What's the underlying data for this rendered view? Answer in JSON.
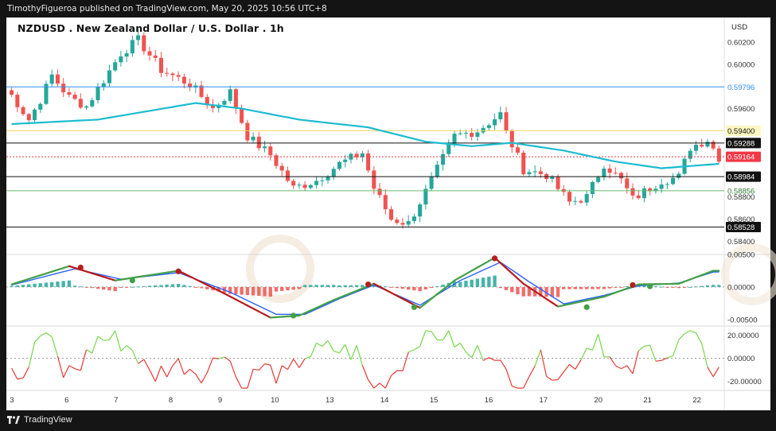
{
  "header": {
    "publisher_line": "TimothyFigueroa published on TradingView.com, May 20, 2025 10:56 UTC+8"
  },
  "title": "NZDUSD . New Zealand Dollar / U.S. Dollar . 1h",
  "currency": "USD",
  "footer": {
    "logo_text": "TradingView"
  },
  "colors": {
    "up": "#26a69a",
    "down": "#ef5350",
    "ma": "#1cbcd0",
    "hline": "#111111",
    "blue_line": "#2f8ff0",
    "yellow_line": "#f2d45c",
    "green_line": "#66bb6a",
    "current_price": "#f23645"
  },
  "chart_data": [
    {
      "type": "candlestick",
      "title": "NZDUSD . New Zealand Dollar / U.S. Dollar . 1h",
      "x_ticks": [
        "3",
        "6",
        "7",
        "8",
        "9",
        "10",
        "13",
        "14",
        "15",
        "16",
        "17",
        "20",
        "21",
        "22"
      ],
      "y_ticks": [
        "0.60200",
        "0.60000",
        "0.59600",
        "0.58800",
        "0.58600",
        "0.58400"
      ],
      "ylim": [
        0.5828,
        0.6028
      ],
      "price_path_anchors": [
        {
          "x": 0,
          "y": 0.5972
        },
        {
          "x": 3,
          "y": 0.595
        },
        {
          "x": 5,
          "y": 0.5968
        },
        {
          "x": 7,
          "y": 0.599
        },
        {
          "x": 10,
          "y": 0.597
        },
        {
          "x": 13,
          "y": 0.5962
        },
        {
          "x": 19,
          "y": 0.601
        },
        {
          "x": 22,
          "y": 0.6022
        },
        {
          "x": 26,
          "y": 0.5995
        },
        {
          "x": 31,
          "y": 0.5982
        },
        {
          "x": 35,
          "y": 0.596
        },
        {
          "x": 38,
          "y": 0.5975
        },
        {
          "x": 41,
          "y": 0.5935
        },
        {
          "x": 45,
          "y": 0.5918
        },
        {
          "x": 49,
          "y": 0.5888
        },
        {
          "x": 53,
          "y": 0.5895
        },
        {
          "x": 57,
          "y": 0.591
        },
        {
          "x": 61,
          "y": 0.592
        },
        {
          "x": 63,
          "y": 0.5888
        },
        {
          "x": 66,
          "y": 0.586
        },
        {
          "x": 69,
          "y": 0.5856
        },
        {
          "x": 72,
          "y": 0.5885
        },
        {
          "x": 77,
          "y": 0.5935
        },
        {
          "x": 81,
          "y": 0.594
        },
        {
          "x": 85,
          "y": 0.5955
        },
        {
          "x": 86,
          "y": 0.5938
        },
        {
          "x": 89,
          "y": 0.5905
        },
        {
          "x": 93,
          "y": 0.59
        },
        {
          "x": 97,
          "y": 0.5875
        },
        {
          "x": 100,
          "y": 0.588
        },
        {
          "x": 103,
          "y": 0.591
        },
        {
          "x": 106,
          "y": 0.5895
        },
        {
          "x": 108,
          "y": 0.5878
        },
        {
          "x": 113,
          "y": 0.5895
        },
        {
          "x": 116,
          "y": 0.5898
        },
        {
          "x": 118,
          "y": 0.5925
        },
        {
          "x": 121,
          "y": 0.5932
        },
        {
          "x": 123,
          "y": 0.5916
        }
      ],
      "moving_average": [
        {
          "x": 0,
          "y": 0.5946
        },
        {
          "x": 15,
          "y": 0.595
        },
        {
          "x": 32,
          "y": 0.5965
        },
        {
          "x": 40,
          "y": 0.596
        },
        {
          "x": 50,
          "y": 0.595
        },
        {
          "x": 62,
          "y": 0.5943
        },
        {
          "x": 72,
          "y": 0.593
        },
        {
          "x": 80,
          "y": 0.5926
        },
        {
          "x": 87,
          "y": 0.5929
        },
        {
          "x": 96,
          "y": 0.5922
        },
        {
          "x": 105,
          "y": 0.5912
        },
        {
          "x": 113,
          "y": 0.5906
        },
        {
          "x": 118,
          "y": 0.5908
        },
        {
          "x": 123,
          "y": 0.591
        }
      ],
      "levels": [
        {
          "label": "0.59796",
          "value": 0.59796,
          "color": "#2f8ff0",
          "text_color": "#2f8ff0",
          "tag_bg": "#ffffff"
        },
        {
          "label": "0.59400",
          "value": 0.594,
          "color": "#f2d45c",
          "text_color": "#111111",
          "tag_bg": "#fff7c0"
        },
        {
          "label": "0.59288",
          "value": 0.59288,
          "color": "#111111",
          "text_color": "#ffffff",
          "tag_bg": "#111111"
        },
        {
          "label": "0.59164",
          "value": 0.59164,
          "color": "#f23645",
          "text_color": "#ffffff",
          "tag_bg": "#f23645",
          "dashed": true
        },
        {
          "label": "0.58984",
          "value": 0.58984,
          "color": "#111111",
          "text_color": "#ffffff",
          "tag_bg": "#111111"
        },
        {
          "label": "0.58856",
          "value": 0.58856,
          "color": "#66bb6a",
          "text_color": "#2e7d32",
          "tag_bg": "#ffffff"
        },
        {
          "label": "0.58528",
          "value": 0.58528,
          "color": "#111111",
          "text_color": "#ffffff",
          "tag_bg": "#111111"
        }
      ]
    },
    {
      "type": "macd",
      "y_ticks": [
        "0.00500",
        "0.00000",
        "-0.00500"
      ],
      "ylim": [
        -0.006,
        0.005
      ],
      "fast_anchors": [
        {
          "x": 0,
          "y": 0.0004
        },
        {
          "x": 10,
          "y": 0.0032
        },
        {
          "x": 18,
          "y": 0.001
        },
        {
          "x": 29,
          "y": 0.0025
        },
        {
          "x": 37,
          "y": -0.001
        },
        {
          "x": 45,
          "y": -0.0047
        },
        {
          "x": 50,
          "y": -0.0044
        },
        {
          "x": 56,
          "y": -0.002
        },
        {
          "x": 63,
          "y": 0.0005
        },
        {
          "x": 71,
          "y": -0.0032
        },
        {
          "x": 77,
          "y": 0.001
        },
        {
          "x": 84,
          "y": 0.0045
        },
        {
          "x": 89,
          "y": 0.0005
        },
        {
          "x": 95,
          "y": -0.003
        },
        {
          "x": 103,
          "y": -0.0015
        },
        {
          "x": 109,
          "y": 0.0004
        },
        {
          "x": 116,
          "y": 0.0005
        },
        {
          "x": 122,
          "y": 0.0025
        }
      ],
      "slow_anchors": [
        {
          "x": 0,
          "y": 0.0003
        },
        {
          "x": 11,
          "y": 0.0028
        },
        {
          "x": 19,
          "y": 0.0012
        },
        {
          "x": 29,
          "y": 0.0022
        },
        {
          "x": 38,
          "y": -0.0008
        },
        {
          "x": 46,
          "y": -0.0042
        },
        {
          "x": 51,
          "y": -0.0042
        },
        {
          "x": 57,
          "y": -0.0018
        },
        {
          "x": 63,
          "y": 0.0003
        },
        {
          "x": 71,
          "y": -0.0028
        },
        {
          "x": 78,
          "y": 0.001
        },
        {
          "x": 85,
          "y": 0.0038
        },
        {
          "x": 90,
          "y": 0.0008
        },
        {
          "x": 96,
          "y": -0.0026
        },
        {
          "x": 103,
          "y": -0.0013
        },
        {
          "x": 109,
          "y": 0.0002
        },
        {
          "x": 116,
          "y": 0.0006
        },
        {
          "x": 122,
          "y": 0.0023
        }
      ],
      "cross_points": [
        {
          "x": 12,
          "y": 0.003,
          "kind": "bearish"
        },
        {
          "x": 21,
          "y": 0.001,
          "kind": "bullish"
        },
        {
          "x": 29,
          "y": 0.0024,
          "kind": "bearish"
        },
        {
          "x": 49,
          "y": -0.0044,
          "kind": "bullish"
        },
        {
          "x": 62,
          "y": 0.0004,
          "kind": "bearish"
        },
        {
          "x": 70,
          "y": -0.0031,
          "kind": "bullish"
        },
        {
          "x": 84,
          "y": 0.0044,
          "kind": "bearish"
        },
        {
          "x": 100,
          "y": -0.0031,
          "kind": "bullish"
        },
        {
          "x": 108,
          "y": 0.0003,
          "kind": "bearish"
        },
        {
          "x": 111,
          "y": 0.0001,
          "kind": "bullish"
        }
      ]
    },
    {
      "type": "oscillator",
      "y_ticks": [
        "20.00000",
        "0.00000",
        "-20.00000"
      ],
      "ylim": [
        -28,
        28
      ],
      "zero_line": 0
    }
  ]
}
